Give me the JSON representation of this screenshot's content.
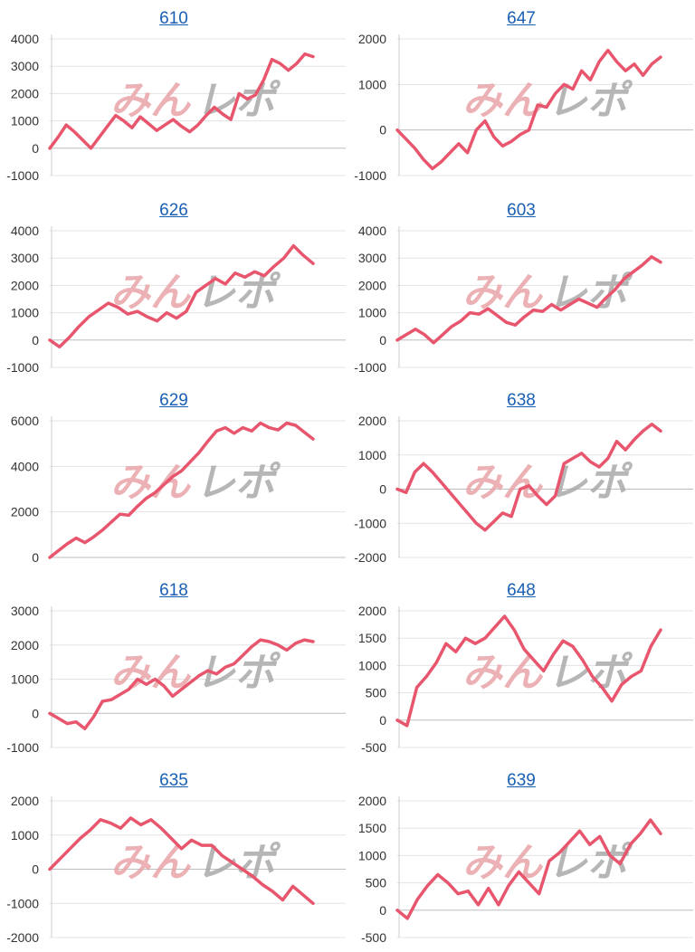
{
  "watermark": {
    "part1": "みん",
    "part2": "レポ",
    "color1": "#e8a3a8",
    "color2": "#a9a9a9"
  },
  "colors": {
    "line": "#e8566e",
    "grid": "#e3e3e3",
    "title": "#1a5fb4",
    "tick": "#333333"
  },
  "chart_data": [
    {
      "type": "line",
      "title": "610",
      "yticks": [
        4000,
        3000,
        2000,
        1000,
        0,
        -1000
      ],
      "ylim": [
        -1000,
        4000
      ],
      "values": [
        0,
        400,
        850,
        600,
        300,
        0,
        400,
        800,
        1200,
        1000,
        750,
        1150,
        900,
        650,
        850,
        1050,
        800,
        600,
        850,
        1200,
        1500,
        1250,
        1050,
        2000,
        1800,
        1950,
        2500,
        3250,
        3100,
        2850,
        3100,
        3450,
        3350
      ]
    },
    {
      "type": "line",
      "title": "647",
      "yticks": [
        2000,
        1000,
        0,
        -1000
      ],
      "ylim": [
        -1000,
        2000
      ],
      "values": [
        0,
        -200,
        -400,
        -650,
        -850,
        -700,
        -500,
        -300,
        -500,
        0,
        200,
        -150,
        -350,
        -250,
        -100,
        0,
        550,
        500,
        800,
        1000,
        900,
        1300,
        1100,
        1500,
        1750,
        1500,
        1300,
        1450,
        1200,
        1450,
        1600
      ]
    },
    {
      "type": "line",
      "title": "626",
      "yticks": [
        4000,
        3000,
        2000,
        1000,
        0,
        -1000
      ],
      "ylim": [
        -1000,
        4000
      ],
      "values": [
        0,
        -250,
        100,
        500,
        850,
        1100,
        1350,
        1200,
        950,
        1050,
        850,
        700,
        1000,
        800,
        1050,
        1750,
        2000,
        2250,
        2050,
        2450,
        2300,
        2500,
        2350,
        2700,
        3000,
        3450,
        3100,
        2800
      ]
    },
    {
      "type": "line",
      "title": "603",
      "yticks": [
        4000,
        3000,
        2000,
        1000,
        0,
        -1000
      ],
      "ylim": [
        -1000,
        4000
      ],
      "values": [
        0,
        200,
        400,
        200,
        -100,
        200,
        500,
        700,
        1000,
        950,
        1150,
        900,
        650,
        550,
        850,
        1100,
        1050,
        1300,
        1100,
        1300,
        1500,
        1350,
        1200,
        1550,
        1850,
        2250,
        2500,
        2750,
        3050,
        2850
      ]
    },
    {
      "type": "line",
      "title": "629",
      "yticks": [
        6000,
        4000,
        2000,
        0
      ],
      "ylim": [
        0,
        6000
      ],
      "values": [
        0,
        300,
        600,
        850,
        650,
        900,
        1200,
        1550,
        1900,
        1850,
        2250,
        2600,
        2850,
        3200,
        3550,
        3800,
        4200,
        4600,
        5100,
        5550,
        5700,
        5450,
        5700,
        5550,
        5900,
        5700,
        5600,
        5900,
        5800,
        5500,
        5200
      ]
    },
    {
      "type": "line",
      "title": "638",
      "yticks": [
        2000,
        1000,
        0,
        -1000,
        -2000
      ],
      "ylim": [
        -2000,
        2000
      ],
      "values": [
        0,
        -100,
        500,
        750,
        500,
        200,
        -100,
        -400,
        -700,
        -1000,
        -1200,
        -950,
        -700,
        -800,
        0,
        100,
        -200,
        -450,
        -200,
        750,
        900,
        1050,
        800,
        650,
        900,
        1400,
        1150,
        1450,
        1700,
        1900,
        1700
      ]
    },
    {
      "type": "line",
      "title": "618",
      "yticks": [
        3000,
        2000,
        1000,
        0,
        -1000
      ],
      "ylim": [
        -1000,
        3000
      ],
      "values": [
        0,
        -150,
        -300,
        -250,
        -450,
        -100,
        350,
        400,
        550,
        700,
        1000,
        850,
        1000,
        800,
        500,
        700,
        900,
        1100,
        1250,
        1150,
        1350,
        1450,
        1700,
        1950,
        2150,
        2100,
        2000,
        1850,
        2050,
        2150,
        2100
      ]
    },
    {
      "type": "line",
      "title": "648",
      "yticks": [
        2000,
        1500,
        1000,
        500,
        0,
        -500
      ],
      "ylim": [
        -500,
        2000
      ],
      "values": [
        0,
        -100,
        600,
        800,
        1050,
        1400,
        1250,
        1500,
        1400,
        1500,
        1700,
        1900,
        1650,
        1300,
        1100,
        900,
        1200,
        1450,
        1350,
        1100,
        800,
        600,
        350,
        650,
        800,
        900,
        1350,
        1650
      ]
    },
    {
      "type": "line",
      "title": "635",
      "yticks": [
        2000,
        1000,
        0,
        -1000,
        -2000
      ],
      "ylim": [
        -2000,
        2000
      ],
      "values": [
        0,
        300,
        600,
        900,
        1150,
        1450,
        1350,
        1200,
        1500,
        1300,
        1450,
        1200,
        900,
        600,
        850,
        700,
        700,
        400,
        200,
        0,
        -200,
        -450,
        -650,
        -900,
        -500,
        -750,
        -1000
      ]
    },
    {
      "type": "line",
      "title": "639",
      "yticks": [
        2000,
        1500,
        1000,
        500,
        0,
        -500
      ],
      "ylim": [
        -500,
        2000
      ],
      "values": [
        0,
        -150,
        200,
        450,
        650,
        500,
        300,
        350,
        100,
        400,
        100,
        450,
        700,
        500,
        300,
        900,
        1050,
        1250,
        1450,
        1200,
        1350,
        1000,
        850,
        1200,
        1400,
        1650,
        1400
      ]
    }
  ]
}
